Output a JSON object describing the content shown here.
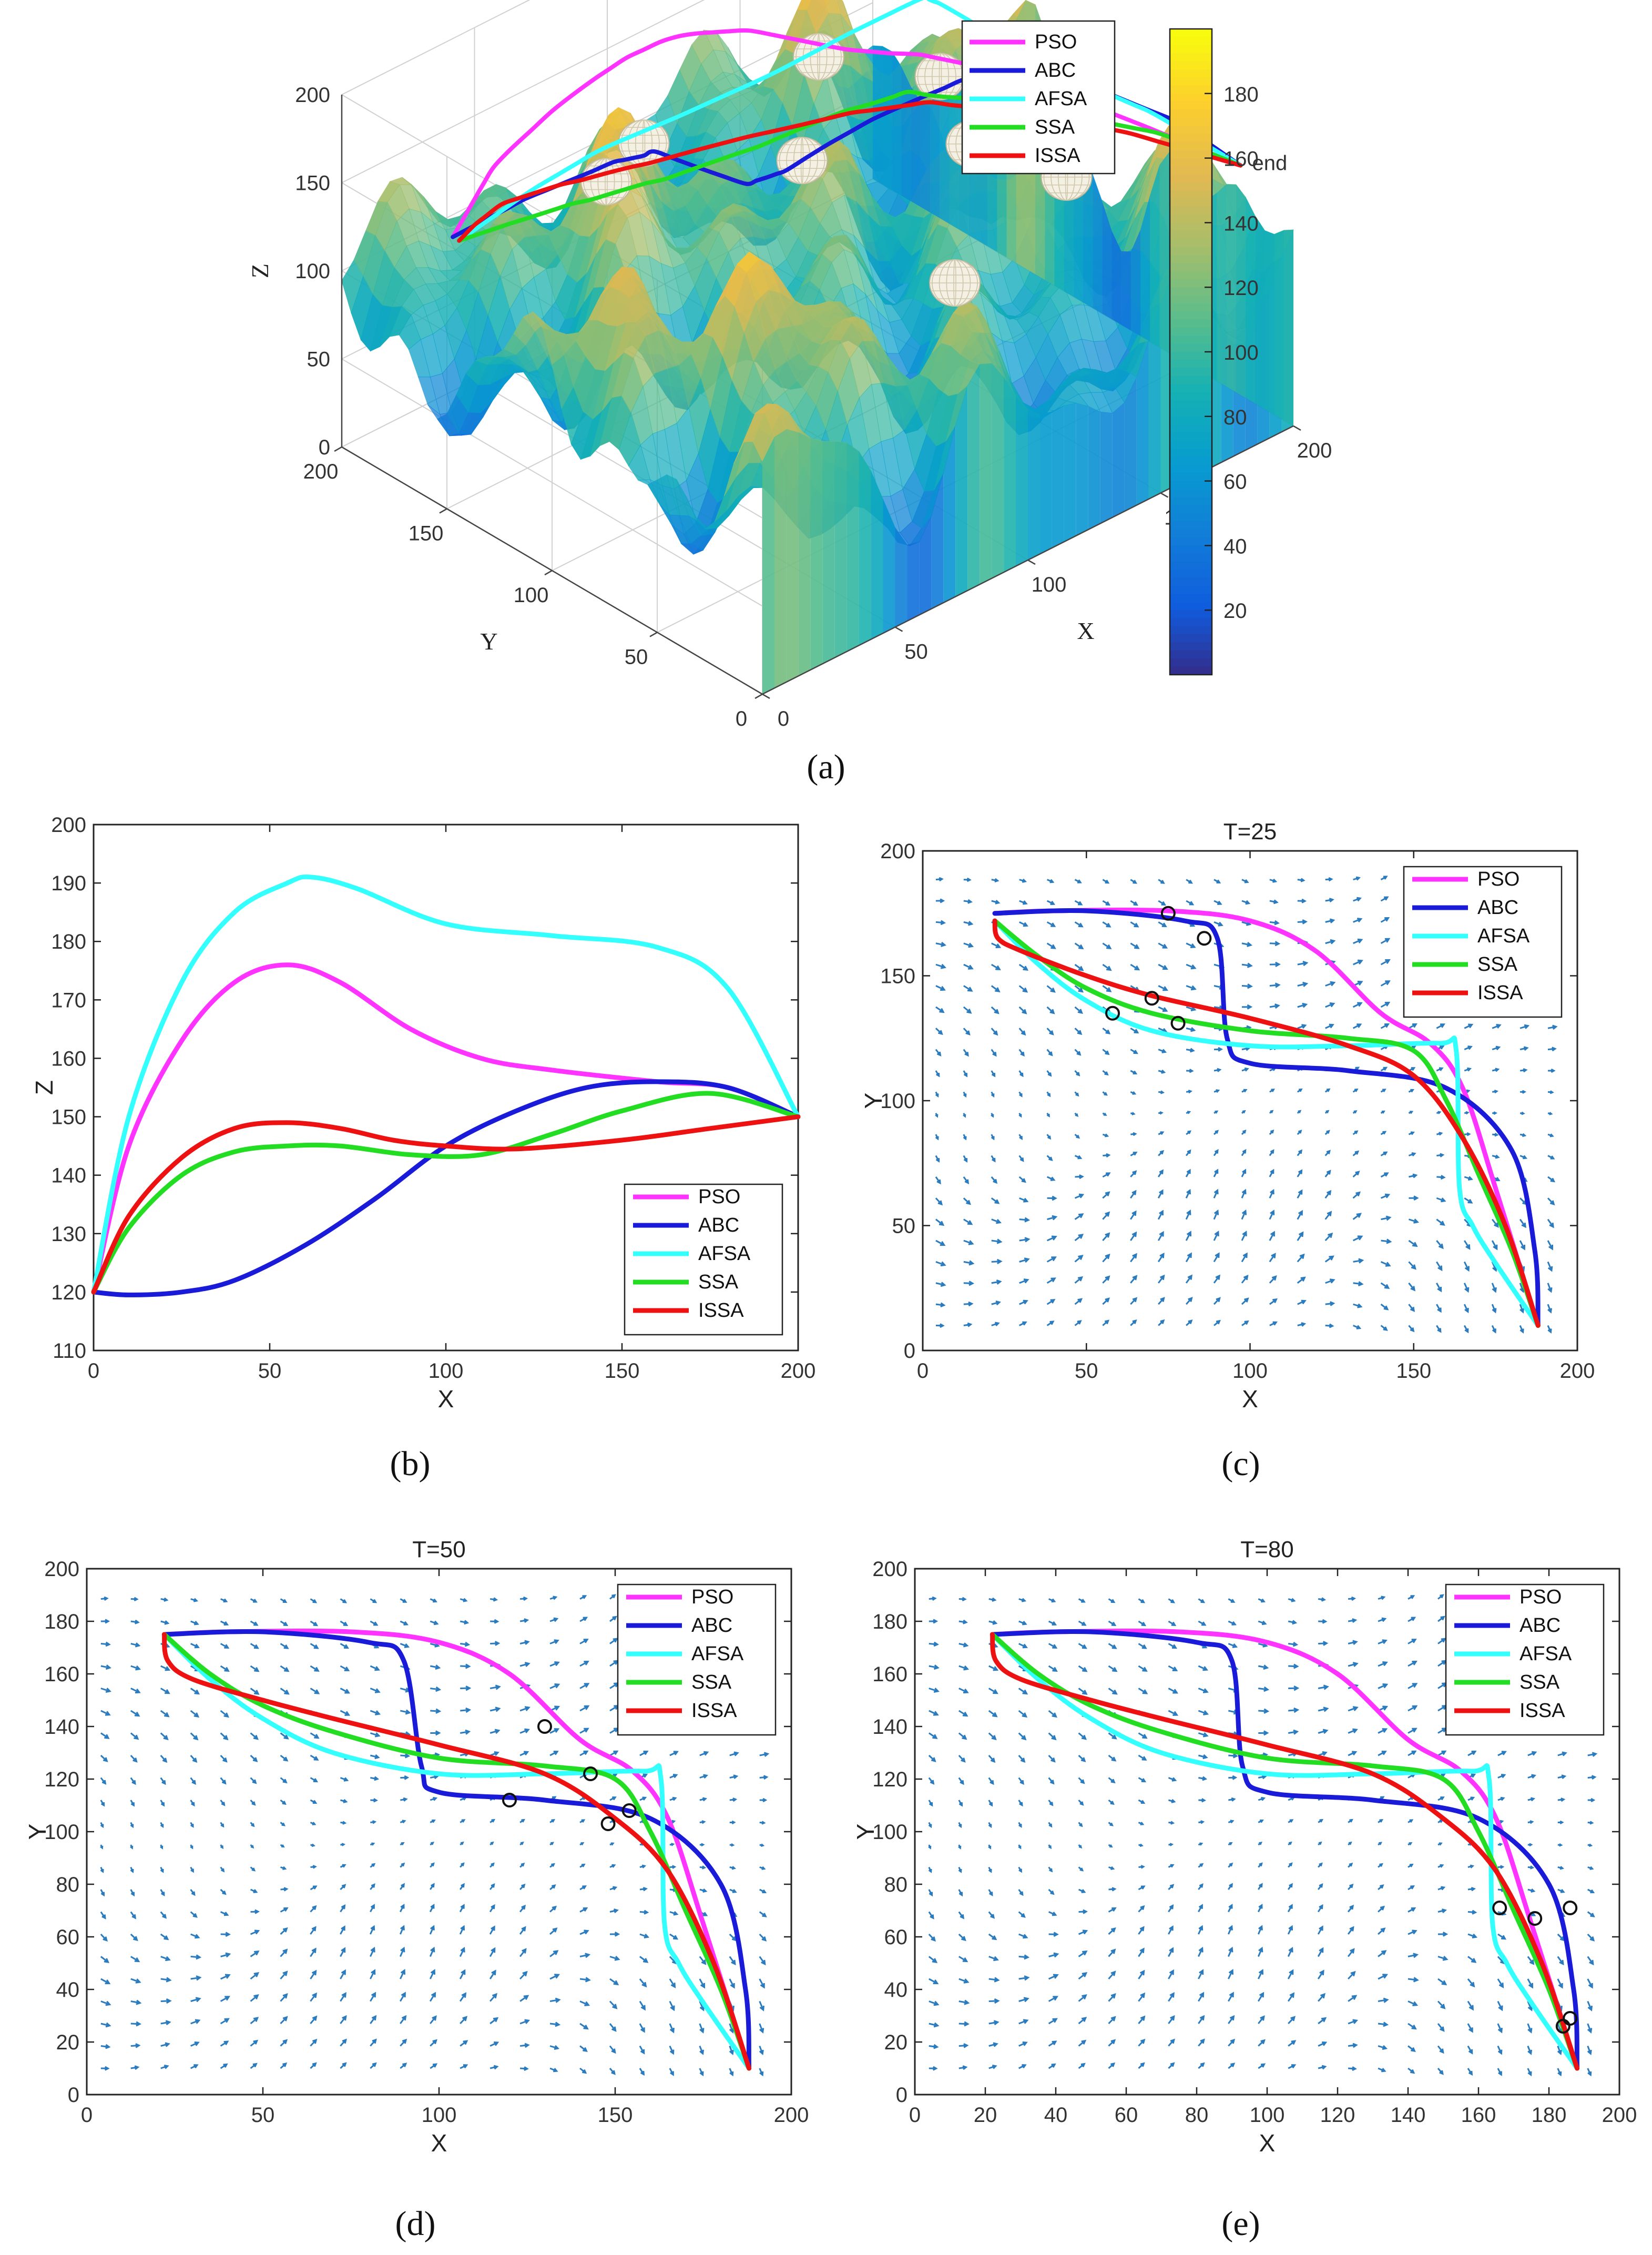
{
  "captions": {
    "a": "(a)",
    "b": "(b)",
    "c": "(c)",
    "d": "(d)",
    "e": "(e)"
  },
  "colors": {
    "PSO": "#ff33ff",
    "ABC": "#1a1ad9",
    "AFSA": "#33ffff",
    "SSA": "#22dd22",
    "ISSA": "#ee1111",
    "quiver": "#2b7bbf"
  },
  "chart_data": [
    {
      "id": "a",
      "type": "surface3d",
      "xlabel": "X",
      "ylabel": "Y",
      "zlabel": "Z",
      "xticks": [
        "0",
        "50",
        "100",
        "150",
        "200"
      ],
      "yticks": [
        "0",
        "50",
        "100",
        "150",
        "200"
      ],
      "zticks": [
        "0",
        "50",
        "100",
        "150",
        "200"
      ],
      "end_label": "end",
      "colorbar_ticks": [
        "20",
        "40",
        "60",
        "80",
        "100",
        "120",
        "140",
        "160",
        "180"
      ],
      "colorbar_range": [
        0,
        200
      ],
      "legend": [
        "PSO",
        "ABC",
        "AFSA",
        "SSA",
        "ISSA"
      ],
      "legend_placement": "top-right"
    },
    {
      "id": "b",
      "type": "line",
      "xlabel": "X",
      "ylabel": "Z",
      "xlim": [
        0,
        200
      ],
      "ylim": [
        110,
        200
      ],
      "xticks": [
        "0",
        "50",
        "100",
        "150",
        "200"
      ],
      "yticks": [
        "110",
        "120",
        "130",
        "140",
        "150",
        "160",
        "170",
        "180",
        "190",
        "200"
      ],
      "legend_placement": "bottom-right",
      "series": [
        {
          "name": "PSO",
          "x": [
            0,
            10,
            25,
            40,
            55,
            70,
            90,
            110,
            130,
            160,
            180,
            200
          ],
          "y": [
            120,
            145,
            163,
            173,
            176,
            173,
            165,
            160,
            158,
            156,
            155,
            150
          ]
        },
        {
          "name": "ABC",
          "x": [
            0,
            10,
            25,
            40,
            60,
            80,
            100,
            120,
            140,
            160,
            180,
            200
          ],
          "y": [
            120,
            119.5,
            120,
            122,
            128,
            136,
            145,
            151,
            155,
            156,
            155,
            150
          ]
        },
        {
          "name": "AFSA",
          "x": [
            0,
            10,
            25,
            40,
            55,
            62,
            75,
            100,
            130,
            160,
            180,
            200
          ],
          "y": [
            120,
            150,
            173,
            185,
            190,
            191,
            189,
            183,
            181,
            179,
            172,
            150
          ]
        },
        {
          "name": "SSA",
          "x": [
            0,
            10,
            25,
            40,
            55,
            70,
            90,
            110,
            130,
            150,
            175,
            200
          ],
          "y": [
            120,
            131,
            140,
            144,
            145,
            145,
            143.5,
            143.5,
            147,
            151,
            154,
            150
          ]
        },
        {
          "name": "ISSA",
          "x": [
            0,
            10,
            25,
            40,
            55,
            70,
            85,
            100,
            120,
            150,
            175,
            200
          ],
          "y": [
            120,
            133,
            143,
            148,
            149,
            148,
            146,
            145,
            144.5,
            146,
            148,
            150
          ]
        }
      ]
    },
    {
      "id": "c",
      "type": "line",
      "title": "T=25",
      "xlabel": "X",
      "ylabel": "Y",
      "xlim": [
        0,
        200
      ],
      "ylim": [
        0,
        200
      ],
      "xticks": [
        "0",
        "50",
        "100",
        "150",
        "200"
      ],
      "yticks": [
        "0",
        "50",
        "100",
        "150",
        "200"
      ],
      "legend_placement": "top-right",
      "series": [
        {
          "name": "PSO",
          "x": [
            22,
            40,
            75,
            100,
            120,
            140,
            155,
            165,
            175,
            188
          ],
          "y": [
            175,
            176,
            176,
            172,
            160,
            135,
            123,
            105,
            65,
            10
          ]
        },
        {
          "name": "ABC",
          "x": [
            22,
            50,
            80,
            90,
            93,
            100,
            130,
            160,
            180,
            187,
            188
          ],
          "y": [
            175,
            176,
            172,
            165,
            125,
            115,
            112,
            105,
            80,
            40,
            10
          ]
        },
        {
          "name": "AFSA",
          "x": [
            22,
            35,
            50,
            70,
            100,
            130,
            158,
            163,
            164,
            168,
            175,
            188
          ],
          "y": [
            172,
            155,
            140,
            128,
            122,
            122,
            123,
            120,
            65,
            50,
            35,
            10
          ]
        },
        {
          "name": "SSA",
          "x": [
            22,
            35,
            50,
            70,
            100,
            130,
            150,
            160,
            170,
            180,
            188
          ],
          "y": [
            172,
            158,
            145,
            135,
            128,
            125,
            120,
            100,
            70,
            40,
            10
          ]
        },
        {
          "name": "ISSA",
          "x": [
            22,
            23,
            30,
            50,
            70,
            100,
            130,
            150,
            165,
            178,
            188
          ],
          "y": [
            172,
            165,
            160,
            150,
            142,
            133,
            122,
            110,
            85,
            50,
            10
          ]
        }
      ],
      "markers": {
        "x": [
          75,
          86,
          58,
          70,
          78
        ],
        "y": [
          175,
          165,
          135,
          141,
          131
        ]
      }
    },
    {
      "id": "d",
      "type": "line",
      "title": "T=50",
      "xlabel": "X",
      "ylabel": "Y",
      "xlim": [
        0,
        200
      ],
      "ylim": [
        0,
        200
      ],
      "xticks": [
        "0",
        "50",
        "100",
        "150",
        "200"
      ],
      "yticks": [
        "0",
        "20",
        "40",
        "60",
        "80",
        "100",
        "120",
        "140",
        "160",
        "180",
        "200"
      ],
      "legend_placement": "top-right",
      "series": [
        {
          "name": "PSO",
          "x": [
            22,
            40,
            75,
            100,
            120,
            140,
            155,
            165,
            175,
            188
          ],
          "y": [
            175,
            176,
            176,
            172,
            160,
            135,
            123,
            105,
            65,
            10
          ]
        },
        {
          "name": "ABC",
          "x": [
            22,
            50,
            80,
            90,
            95,
            100,
            130,
            160,
            180,
            187,
            188
          ],
          "y": [
            175,
            176,
            172,
            165,
            125,
            115,
            112,
            105,
            80,
            40,
            10
          ]
        },
        {
          "name": "AFSA",
          "x": [
            22,
            35,
            50,
            70,
            100,
            130,
            158,
            163,
            164,
            168,
            175,
            188
          ],
          "y": [
            175,
            158,
            143,
            130,
            122,
            122,
            123,
            120,
            65,
            50,
            35,
            10
          ]
        },
        {
          "name": "SSA",
          "x": [
            22,
            35,
            50,
            70,
            100,
            130,
            150,
            160,
            170,
            180,
            188
          ],
          "y": [
            175,
            160,
            148,
            138,
            128,
            125,
            120,
            100,
            70,
            40,
            10
          ]
        },
        {
          "name": "ISSA",
          "x": [
            22,
            23,
            30,
            50,
            70,
            100,
            130,
            150,
            165,
            178,
            188
          ],
          "y": [
            175,
            165,
            158,
            150,
            143,
            133,
            122,
            105,
            85,
            50,
            10
          ]
        }
      ],
      "markers": {
        "x": [
          130,
          143,
          120,
          154,
          148
        ],
        "y": [
          140,
          122,
          112,
          108,
          103
        ]
      }
    },
    {
      "id": "e",
      "type": "line",
      "title": "T=80",
      "xlabel": "X",
      "ylabel": "Y",
      "xlim": [
        0,
        200
      ],
      "ylim": [
        0,
        200
      ],
      "xticks": [
        "0",
        "20",
        "40",
        "60",
        "80",
        "100",
        "120",
        "140",
        "160",
        "180",
        "200"
      ],
      "yticks": [
        "0",
        "20",
        "40",
        "60",
        "80",
        "100",
        "120",
        "140",
        "160",
        "180",
        "200"
      ],
      "legend_placement": "top-right",
      "series": [
        {
          "name": "PSO",
          "x": [
            22,
            40,
            75,
            100,
            120,
            140,
            155,
            165,
            175,
            188
          ],
          "y": [
            175,
            176,
            176,
            172,
            160,
            135,
            123,
            105,
            65,
            10
          ]
        },
        {
          "name": "ABC",
          "x": [
            22,
            50,
            80,
            90,
            93,
            100,
            130,
            160,
            180,
            187,
            188
          ],
          "y": [
            175,
            176,
            172,
            165,
            125,
            115,
            112,
            105,
            80,
            40,
            10
          ]
        },
        {
          "name": "AFSA",
          "x": [
            22,
            35,
            50,
            70,
            100,
            130,
            158,
            163,
            164,
            168,
            175,
            188
          ],
          "y": [
            175,
            158,
            143,
            130,
            122,
            122,
            123,
            120,
            65,
            50,
            35,
            10
          ]
        },
        {
          "name": "SSA",
          "x": [
            22,
            35,
            50,
            70,
            100,
            130,
            150,
            160,
            170,
            180,
            188
          ],
          "y": [
            175,
            160,
            148,
            138,
            128,
            125,
            120,
            100,
            70,
            40,
            10
          ]
        },
        {
          "name": "ISSA",
          "x": [
            22,
            23,
            30,
            50,
            70,
            100,
            130,
            150,
            165,
            178,
            188
          ],
          "y": [
            175,
            165,
            158,
            150,
            143,
            133,
            122,
            105,
            85,
            50,
            10
          ]
        }
      ],
      "markers": {
        "x": [
          166,
          176,
          186,
          184,
          186
        ],
        "y": [
          71,
          67,
          71,
          26,
          29
        ]
      }
    }
  ]
}
